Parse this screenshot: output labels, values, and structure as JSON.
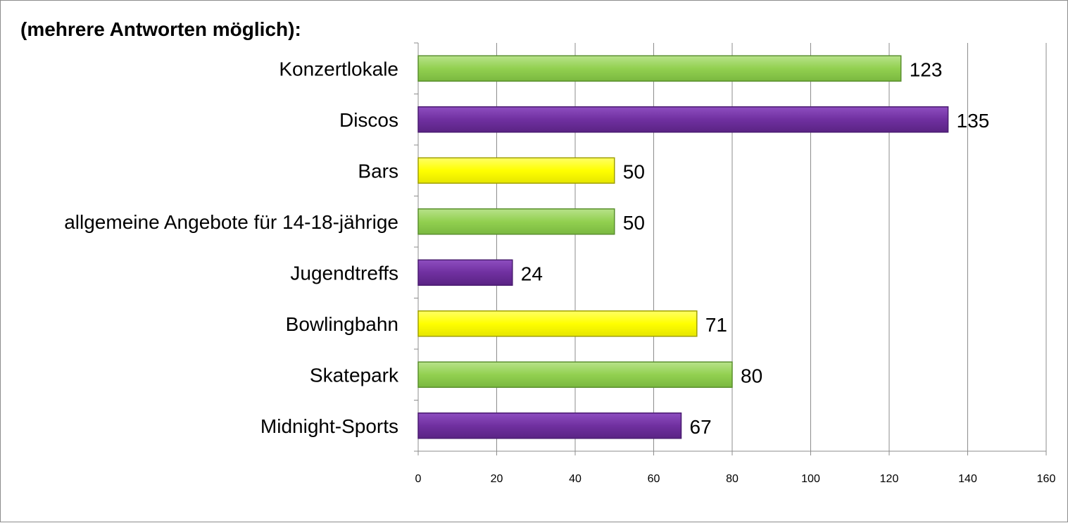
{
  "chart_data": {
    "type": "bar",
    "orientation": "horizontal",
    "title": "(mehrere Antworten möglich):",
    "categories": [
      "Konzertlokale",
      "Discos",
      "Bars",
      "allgemeine Angebote für 14-18-jährige",
      "Jugendtreffs",
      "Bowlingbahn",
      "Skatepark",
      "Midnight-Sports"
    ],
    "values": [
      123,
      135,
      50,
      50,
      24,
      71,
      80,
      67
    ],
    "bar_colors": [
      "#92d050",
      "#7030a0",
      "#ffff00",
      "#92d050",
      "#7030a0",
      "#ffff00",
      "#92d050",
      "#7030a0"
    ],
    "xlim": [
      0,
      160
    ],
    "xticks": [
      0,
      20,
      40,
      60,
      80,
      100,
      120,
      140,
      160
    ],
    "grid": "vertical",
    "data_labels": true
  }
}
